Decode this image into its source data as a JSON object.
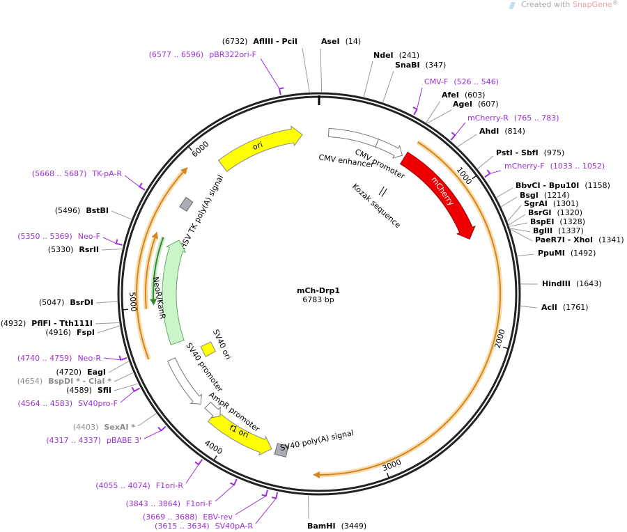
{
  "title": "mCh-Drp1",
  "length": "6783 bp",
  "watermark": [
    "Created with ",
    "SnapGene",
    "®"
  ],
  "ticks": [
    1000,
    2000,
    3000,
    4000,
    5000,
    6000
  ],
  "features": [
    {
      "label": "mCherry"
    },
    {
      "label": "CMV enhancer"
    },
    {
      "label": "CMV promoter"
    },
    {
      "label": "ori"
    },
    {
      "label": "f1 ori"
    },
    {
      "label": "AmpR promoter"
    },
    {
      "label": "SV40 promoter"
    },
    {
      "label": "SV40 ori"
    },
    {
      "label": "SV40 poly(A) signal"
    },
    {
      "label": "HSV TK poly(A) signal"
    },
    {
      "label": "NeoR/KanR"
    },
    {
      "label": "Kozak sequence"
    }
  ],
  "sites": [
    {
      "name": "AflIII  - PciI",
      "pos": "(6732)"
    },
    {
      "name": "AseI",
      "pos": "(14)"
    },
    {
      "name": "NdeI",
      "pos": "(241)"
    },
    {
      "name": "SnaBI",
      "pos": "(347)"
    },
    {
      "name": "AfeI",
      "pos": "(603)"
    },
    {
      "name": "AgeI",
      "pos": "(607)"
    },
    {
      "name": "AhdI",
      "pos": "(814)"
    },
    {
      "name": "PstI  - SbfI",
      "pos": "(975)"
    },
    {
      "name": "BbvCI - Bpu10I",
      "pos": "(1158)"
    },
    {
      "name": "BsgI",
      "pos": "(1214)"
    },
    {
      "name": "SgrAI",
      "pos": "(1301)"
    },
    {
      "name": "BsrGI",
      "pos": "(1320)"
    },
    {
      "name": "BspEI",
      "pos": "(1328)"
    },
    {
      "name": "BglII",
      "pos": "(1337)"
    },
    {
      "name": "PaeR7I - XhoI",
      "pos": "(1341)"
    },
    {
      "name": "PpuMI",
      "pos": "(1492)"
    },
    {
      "name": "HindIII",
      "pos": "(1643)"
    },
    {
      "name": "AclI",
      "pos": "(1761)"
    },
    {
      "name": "BamHI",
      "pos": "(3449)"
    },
    {
      "name": "BstBI",
      "pos": "(5496)"
    },
    {
      "name": "RsrII",
      "pos": "(5330)"
    },
    {
      "name": "BsrDI",
      "pos": "(5047)"
    },
    {
      "name": "PflFI  - Tth111I",
      "pos": "(4932)"
    },
    {
      "name": "FspI",
      "pos": "(4916)"
    },
    {
      "name": "EagI",
      "pos": "(4720)"
    },
    {
      "name": "BspDI * - ClaI *",
      "pos": "(4654)",
      "color": "#8c8c8c"
    },
    {
      "name": "SfiI",
      "pos": "(4589)"
    },
    {
      "name": "SexAI *",
      "pos": "(4403)",
      "color": "#8c8c8c"
    }
  ],
  "primers": [
    {
      "name": "pBR322ori-F",
      "range": "(6577 .. 6596)"
    },
    {
      "name": "CMV-F",
      "range": "(526 .. 546)"
    },
    {
      "name": "mCherry-R",
      "range": "(765 .. 783)"
    },
    {
      "name": "mCherry-F",
      "range": "(1033 .. 1052)"
    },
    {
      "name": "TK-pA-R",
      "range": "(5668 .. 5687)"
    },
    {
      "name": "Neo-F",
      "range": "(5350 .. 5369)"
    },
    {
      "name": "Neo-R",
      "range": "(4740 .. 4759)"
    },
    {
      "name": "SV40pro-F",
      "range": "(4564 .. 4583)"
    },
    {
      "name": "pBABE 3'",
      "range": "(4317 .. 4337)"
    },
    {
      "name": "F1ori-R",
      "range": "(4055 .. 4074)"
    },
    {
      "name": "F1ori-F",
      "range": "(3843 .. 3864)"
    },
    {
      "name": "EBV-rev",
      "range": "(3669 .. 3688)"
    },
    {
      "name": "SV40pA-R",
      "range": "(3615 .. 3634)"
    }
  ]
}
